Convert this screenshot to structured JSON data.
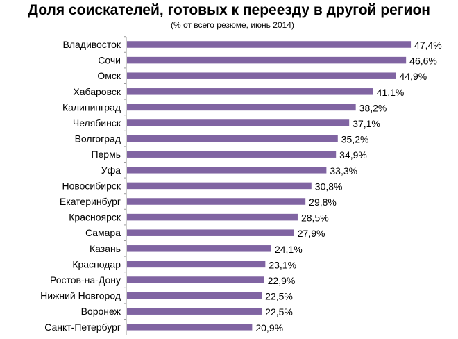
{
  "chart_data": {
    "type": "bar",
    "orientation": "horizontal",
    "title": "Доля соискателей, готовых к переезду в другой регион",
    "subtitle": "(% от всего резюме, июнь 2014)",
    "categories": [
      "Владивосток",
      "Сочи",
      "Омск",
      "Хабаровск",
      "Калининград",
      "Челябинск",
      "Волгоград",
      "Пермь",
      "Уфа",
      "Новосибирск",
      "Екатеринбург",
      "Красноярск",
      "Самара",
      "Казань",
      "Краснодар",
      "Ростов-на-Дону",
      "Нижний Новгород",
      "Воронеж",
      "Санкт-Петербург"
    ],
    "values": [
      47.4,
      46.6,
      44.9,
      41.1,
      38.2,
      37.1,
      35.2,
      34.9,
      33.3,
      30.8,
      29.8,
      28.5,
      27.9,
      24.1,
      23.1,
      22.9,
      22.5,
      22.5,
      20.9
    ],
    "labels": [
      "47,4%",
      "46,6%",
      "44,9%",
      "41,1%",
      "38,2%",
      "37,1%",
      "35,2%",
      "34,9%",
      "33,3%",
      "30,8%",
      "29,8%",
      "28,5%",
      "27,9%",
      "24,1%",
      "23,1%",
      "22,9%",
      "22,5%",
      "22,5%",
      "20,9%"
    ],
    "color": "#8064A2",
    "grid": false
  }
}
